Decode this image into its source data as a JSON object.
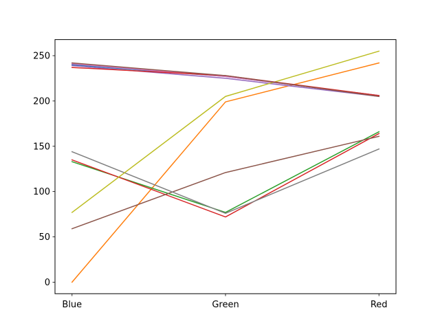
{
  "chart_data": {
    "type": "line",
    "categories": [
      "Blue",
      "Green",
      "Red"
    ],
    "ylim": [
      -12.75,
      267.75
    ],
    "yticks": [
      0,
      50,
      100,
      150,
      200,
      250
    ],
    "grid": false,
    "series": [
      {
        "color": "#1f77b4",
        "values": [
          240,
          227,
          206
        ]
      },
      {
        "color": "#ff7f0e",
        "values": [
          0,
          199,
          242
        ]
      },
      {
        "color": "#2ca02c",
        "values": [
          133,
          77,
          166
        ]
      },
      {
        "color": "#d62728",
        "values": [
          135,
          72,
          164
        ]
      },
      {
        "color": "#9467bd",
        "values": [
          239,
          225,
          205
        ]
      },
      {
        "color": "#8c564b",
        "values": [
          59,
          121,
          161
        ]
      },
      {
        "color": "#e377c2",
        "values": [
          241,
          227,
          206
        ]
      },
      {
        "color": "#7f7f7f",
        "values": [
          144,
          76,
          147
        ]
      },
      {
        "color": "#bcbd22",
        "values": [
          77,
          205,
          255
        ]
      },
      {
        "color": "#d62728",
        "values": [
          237,
          228,
          206
        ]
      },
      {
        "color": "#8c564b",
        "values": [
          242,
          228,
          205
        ]
      }
    ]
  }
}
